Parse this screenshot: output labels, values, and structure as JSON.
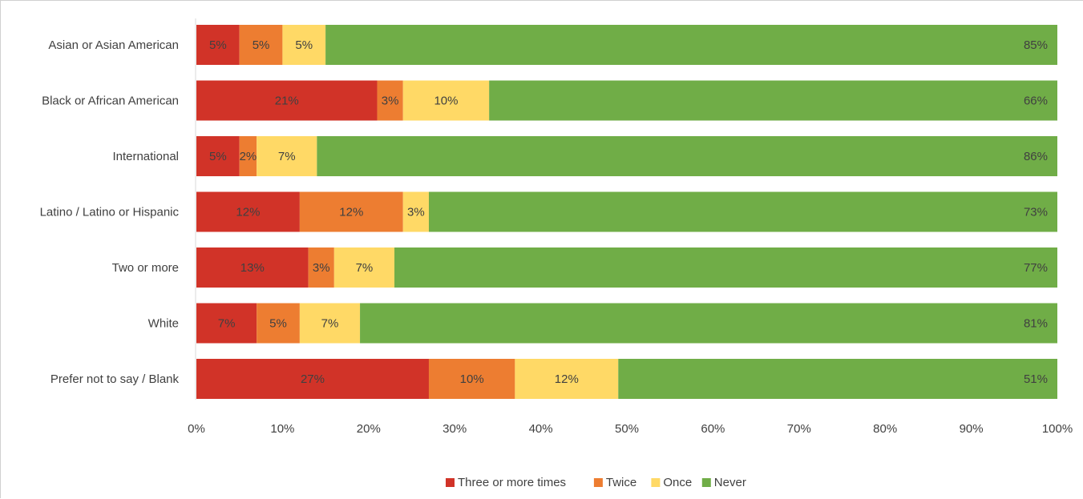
{
  "chart_data": {
    "type": "bar",
    "orientation": "horizontal",
    "stacked": true,
    "percent_stacked": true,
    "categories": [
      "Asian or Asian American",
      "Black or African American",
      "International",
      "Latino / Latino or Hispanic",
      "Two or more",
      "White",
      "Prefer not to say / Blank"
    ],
    "series": [
      {
        "name": "Three or more times",
        "color": "#d13328",
        "values": [
          5,
          21,
          5,
          12,
          13,
          7,
          27
        ],
        "labels": [
          "5%",
          "21%",
          "5%",
          "12%",
          "13%",
          "7%",
          "27%"
        ]
      },
      {
        "name": "Twice",
        "color": "#ed7d31",
        "values": [
          5,
          3,
          2,
          12,
          3,
          5,
          10
        ],
        "labels": [
          "5%",
          "3%",
          "2%",
          "12%",
          "3%",
          "5%",
          "10%"
        ]
      },
      {
        "name": "Once",
        "color": "#ffd966",
        "values": [
          5,
          10,
          7,
          3,
          7,
          7,
          12
        ],
        "labels": [
          "5%",
          "10%",
          "7%",
          "3%",
          "7%",
          "7%",
          "12%"
        ]
      },
      {
        "name": "Never",
        "color": "#70ad47",
        "values": [
          85,
          66,
          86,
          73,
          77,
          81,
          51
        ],
        "labels": [
          "85%",
          "66%",
          "86%",
          "73%",
          "77%",
          "81%",
          "51%"
        ]
      }
    ],
    "xlim": [
      0,
      100
    ],
    "x_ticks": [
      "0%",
      "10%",
      "20%",
      "30%",
      "40%",
      "50%",
      "60%",
      "70%",
      "80%",
      "90%",
      "100%"
    ],
    "grid": false,
    "legend_position": "bottom",
    "title": "",
    "xlabel": "",
    "ylabel": ""
  }
}
